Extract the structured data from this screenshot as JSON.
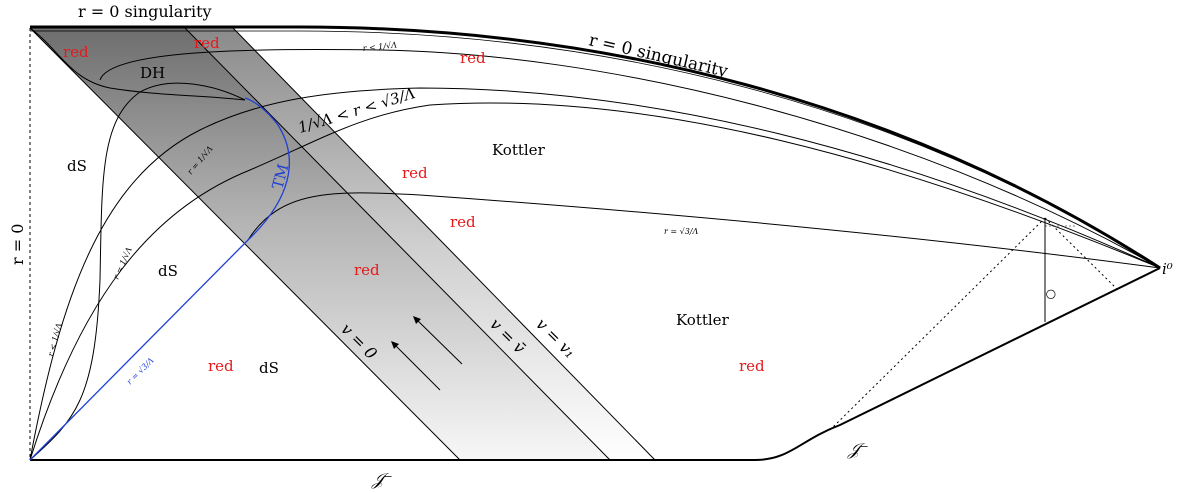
{
  "labels": {
    "top_left_singularity": "r = 0 singularity",
    "top_singularity": "r = 0 singularity",
    "left_axis": "r = 0",
    "dh": "DH",
    "tm": "TM",
    "ds_upper": "dS",
    "ds_middle": "dS",
    "ds_lower": "dS",
    "kottler_upper": "Kottler",
    "kottler_lower": "Kottler",
    "scri_bottom": "𝒥⁻",
    "scri_right": "𝒥⁻",
    "i0": "i⁰",
    "v0": "v = 0",
    "vbar": "v = v̄",
    "v1": "v = v₁",
    "r_lt_top": "r < 1/√Λ",
    "r_between": "1/√Λ < r < √3/Λ",
    "r_sqrt3_right": "r = √3/Λ",
    "r_eq_1_upper": "r = 1/√Λ",
    "r_eq_1_lower": "r = 1/√Λ",
    "r_lt_left": "r < 1/√Λ",
    "r_sqrt3_blue": "r = √3/Λ",
    "circle_mark": "○"
  },
  "red_labels": [
    "red",
    "red",
    "red",
    "red",
    "red",
    "red",
    "red",
    "red"
  ],
  "colors": {
    "red": "#e41a1c",
    "blue": "#1f3fd6",
    "band_dark": "#707070",
    "band_light": "#f5f5f5"
  }
}
